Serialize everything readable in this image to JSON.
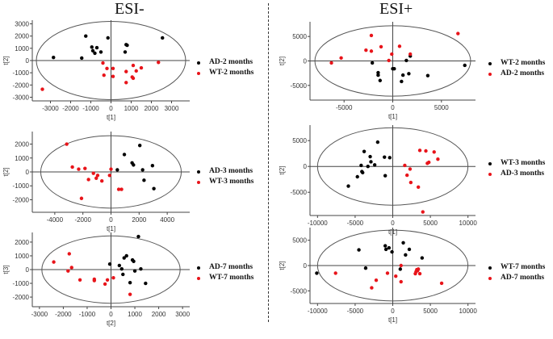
{
  "titles": {
    "negative": "ESI-",
    "positive": "ESI+"
  },
  "colors": {
    "black_group": "#000000",
    "red_group": "#e8141a",
    "axis": "#444444",
    "ellipse": "#555555"
  },
  "chart_data": [
    {
      "id": "esi-neg-2m",
      "type": "scatter",
      "section": "ESI-",
      "xlabel": "t[1]",
      "ylabel": "t[2]",
      "xlim": [
        -3900,
        3900
      ],
      "ylim": [
        -3300,
        3300
      ],
      "xticks": [
        -3000,
        -2000,
        -1000,
        0,
        1000,
        2000,
        3000
      ],
      "yticks": [
        -3000,
        -2000,
        -1000,
        0,
        1000,
        2000,
        3000
      ],
      "ellipse": {
        "rx": 3700,
        "ry": 3200
      },
      "legend": [
        {
          "label": "AD-2 months",
          "color": "#000000"
        },
        {
          "label": "WT-2 months",
          "color": "#e8141a"
        }
      ],
      "series": [
        {
          "name": "AD-2 months",
          "color": "#000000",
          "points": [
            [
              -2850,
              250
            ],
            [
              -1450,
              200
            ],
            [
              -1250,
              2000
            ],
            [
              -950,
              1100
            ],
            [
              -900,
              800
            ],
            [
              -800,
              600
            ],
            [
              -700,
              1050
            ],
            [
              -500,
              700
            ],
            [
              -150,
              1850
            ],
            [
              700,
              700
            ],
            [
              750,
              1300
            ],
            [
              800,
              1250
            ],
            [
              2550,
              1850
            ]
          ]
        },
        {
          "name": "WT-2 months",
          "color": "#e8141a",
          "points": [
            [
              -3400,
              -2350
            ],
            [
              -400,
              -200
            ],
            [
              -350,
              -1200
            ],
            [
              -200,
              -650
            ],
            [
              100,
              -650
            ],
            [
              100,
              -1300
            ],
            [
              750,
              -900
            ],
            [
              750,
              -1800
            ],
            [
              1050,
              -1350
            ],
            [
              1100,
              -1450
            ],
            [
              1100,
              -400
            ],
            [
              1250,
              -850
            ],
            [
              1500,
              -600
            ],
            [
              2350,
              -150
            ]
          ]
        }
      ]
    },
    {
      "id": "esi-neg-3m",
      "type": "scatter",
      "section": "ESI-",
      "xlabel": "t[1]",
      "ylabel": "t[2]",
      "xlim": [
        -5600,
        5600
      ],
      "ylim": [
        -2900,
        2900
      ],
      "xticks": [
        -4000,
        -2000,
        0,
        2000,
        4000
      ],
      "yticks": [
        -2000,
        -1000,
        0,
        1000,
        2000
      ],
      "ellipse": {
        "rx": 5000,
        "ry": 2600
      },
      "legend": [
        {
          "label": "AD-3 months",
          "color": "#000000"
        },
        {
          "label": "WT-3 months",
          "color": "#e8141a"
        }
      ],
      "series": [
        {
          "name": "AD-3 months",
          "color": "#000000",
          "points": [
            [
              450,
              150
            ],
            [
              950,
              1250
            ],
            [
              1500,
              650
            ],
            [
              1600,
              500
            ],
            [
              2050,
              1900
            ],
            [
              2250,
              150
            ],
            [
              2350,
              -600
            ],
            [
              2950,
              450
            ],
            [
              3050,
              -1200
            ]
          ]
        },
        {
          "name": "WT-3 months",
          "color": "#e8141a",
          "points": [
            [
              -3150,
              2000
            ],
            [
              -2750,
              350
            ],
            [
              -2300,
              200
            ],
            [
              -2100,
              -1900
            ],
            [
              -1850,
              250
            ],
            [
              -1600,
              -550
            ],
            [
              -1250,
              -100
            ],
            [
              -1050,
              -450
            ],
            [
              -950,
              -250
            ],
            [
              -650,
              -650
            ],
            [
              -100,
              -250
            ],
            [
              0,
              200
            ],
            [
              550,
              -1250
            ],
            [
              750,
              -1250
            ]
          ]
        }
      ]
    },
    {
      "id": "esi-neg-7m",
      "type": "scatter",
      "section": "ESI-",
      "xlabel": "t[2]",
      "ylabel": "t[3]",
      "xlim": [
        -3300,
        3300
      ],
      "ylim": [
        -2700,
        2700
      ],
      "xticks": [
        -3000,
        -2000,
        -1000,
        0,
        1000,
        2000,
        3000
      ],
      "yticks": [
        -2000,
        -1000,
        0,
        1000,
        2000
      ],
      "ellipse": {
        "rx": 2900,
        "ry": 2450
      },
      "legend": [
        {
          "label": "AD-7 months",
          "color": "#000000"
        },
        {
          "label": "WT-7 months",
          "color": "#e8141a"
        }
      ],
      "series": [
        {
          "name": "AD-7 months",
          "color": "#000000",
          "points": [
            [
              -50,
              400
            ],
            [
              350,
              300
            ],
            [
              450,
              50
            ],
            [
              500,
              -350
            ],
            [
              550,
              850
            ],
            [
              650,
              1000
            ],
            [
              800,
              -950
            ],
            [
              900,
              700
            ],
            [
              950,
              600
            ],
            [
              1000,
              -100
            ],
            [
              1150,
              2400
            ],
            [
              1250,
              50
            ],
            [
              1450,
              -1000
            ]
          ]
        },
        {
          "name": "WT-7 months",
          "color": "#e8141a",
          "points": [
            [
              -2400,
              550
            ],
            [
              -1750,
              1150
            ],
            [
              -1800,
              -100
            ],
            [
              -1650,
              150
            ],
            [
              -1300,
              -750
            ],
            [
              -700,
              -700
            ],
            [
              -700,
              -800
            ],
            [
              -250,
              -1050
            ],
            [
              -150,
              -750
            ],
            [
              100,
              -600
            ],
            [
              800,
              -1800
            ]
          ]
        }
      ]
    },
    {
      "id": "esi-pos-2m",
      "type": "scatter",
      "section": "ESI+",
      "xlabel": "t[1]",
      "ylabel": "t[2]",
      "xlim": [
        -8500,
        8500
      ],
      "ylim": [
        -8000,
        8000
      ],
      "xticks": [
        -5000,
        0,
        5000
      ],
      "yticks": [
        -5000,
        0,
        5000
      ],
      "ellipse": {
        "rx": 8000,
        "ry": 7200
      },
      "legend": [
        {
          "label": "WT-2 months",
          "color": "#000000"
        },
        {
          "label": "AD-2 months",
          "color": "#e8141a"
        }
      ],
      "series": [
        {
          "name": "WT-2 months",
          "color": "#000000",
          "points": [
            [
              -2100,
              -400
            ],
            [
              -1500,
              -2400
            ],
            [
              -1500,
              -2900
            ],
            [
              -1300,
              -4000
            ],
            [
              0,
              -1600
            ],
            [
              150,
              -1600
            ],
            [
              900,
              -4200
            ],
            [
              1050,
              -2900
            ],
            [
              1400,
              100
            ],
            [
              1650,
              -2600
            ],
            [
              1800,
              1000
            ],
            [
              3600,
              -3000
            ],
            [
              7400,
              -900
            ]
          ]
        },
        {
          "name": "AD-2 months",
          "color": "#e8141a",
          "points": [
            [
              -6300,
              -400
            ],
            [
              -5300,
              600
            ],
            [
              -2750,
              2200
            ],
            [
              -2200,
              2000
            ],
            [
              -2200,
              5200
            ],
            [
              -1200,
              2900
            ],
            [
              -400,
              100
            ],
            [
              -100,
              1400
            ],
            [
              700,
              3000
            ],
            [
              1800,
              1400
            ],
            [
              6700,
              5600
            ]
          ]
        }
      ]
    },
    {
      "id": "esi-pos-3m",
      "type": "scatter",
      "section": "ESI+",
      "xlabel": "t[1]",
      "ylabel": "t[2]",
      "xlim": [
        -11000,
        11000
      ],
      "ylim": [
        -9500,
        8000
      ],
      "xticks": [
        -10000,
        -5000,
        0,
        5000,
        10000
      ],
      "yticks": [
        -5000,
        0,
        5000
      ],
      "ellipse": {
        "rx": 10000,
        "ry": 7500
      },
      "legend": [
        {
          "label": "WT-3 months",
          "color": "#000000"
        },
        {
          "label": "AD-3 months",
          "color": "#e8141a"
        }
      ],
      "series": [
        {
          "name": "WT-3 months",
          "color": "#000000",
          "points": [
            [
              -5900,
              -3800
            ],
            [
              -4700,
              -2000
            ],
            [
              -4200,
              200
            ],
            [
              -4100,
              -1000
            ],
            [
              -4000,
              -1200
            ],
            [
              -3800,
              2900
            ],
            [
              -3300,
              0
            ],
            [
              -3000,
              1900
            ],
            [
              -2900,
              900
            ],
            [
              -2400,
              300
            ],
            [
              -2000,
              4700
            ],
            [
              -1100,
              1800
            ],
            [
              -1000,
              -1800
            ],
            [
              -400,
              1700
            ]
          ]
        },
        {
          "name": "AD-3 months",
          "color": "#e8141a",
          "points": [
            [
              1600,
              200
            ],
            [
              1900,
              -1700
            ],
            [
              2300,
              -500
            ],
            [
              2400,
              -3100
            ],
            [
              3400,
              -4000
            ],
            [
              3600,
              3100
            ],
            [
              4000,
              -8800
            ],
            [
              4400,
              3000
            ],
            [
              4600,
              600
            ],
            [
              4800,
              800
            ],
            [
              5500,
              2800
            ],
            [
              6000,
              1400
            ]
          ]
        }
      ]
    },
    {
      "id": "esi-pos-7m",
      "type": "scatter",
      "section": "ESI+",
      "xlabel": "t[1]",
      "ylabel": "t[2]",
      "xlim": [
        -11000,
        11000
      ],
      "ylim": [
        -7500,
        7500
      ],
      "xticks": [
        -10000,
        -5000,
        0,
        5000,
        10000
      ],
      "yticks": [
        -5000,
        0,
        5000
      ],
      "ellipse": {
        "rx": 10000,
        "ry": 7000
      },
      "legend": [
        {
          "label": "WT-7 months",
          "color": "#000000"
        },
        {
          "label": "AD-7 months",
          "color": "#e8141a"
        }
      ],
      "series": [
        {
          "name": "WT-7 months",
          "color": "#000000",
          "points": [
            [
              -10100,
              -1500
            ],
            [
              -4500,
              3100
            ],
            [
              -3600,
              -500
            ],
            [
              -1000,
              3900
            ],
            [
              -900,
              3200
            ],
            [
              -500,
              3500
            ],
            [
              -100,
              2700
            ],
            [
              1000,
              -700
            ],
            [
              1400,
              4500
            ],
            [
              1700,
              2100
            ],
            [
              2200,
              3200
            ],
            [
              3900,
              1500
            ]
          ]
        },
        {
          "name": "AD-7 months",
          "color": "#e8141a",
          "points": [
            [
              -7600,
              -1500
            ],
            [
              -2800,
              -4400
            ],
            [
              -2200,
              -2900
            ],
            [
              -700,
              -1500
            ],
            [
              400,
              -2100
            ],
            [
              1100,
              0
            ],
            [
              1100,
              -3200
            ],
            [
              3000,
              -1600
            ],
            [
              3100,
              -1200
            ],
            [
              3200,
              -800
            ],
            [
              3300,
              -1000
            ],
            [
              3400,
              -700
            ],
            [
              3600,
              -1600
            ],
            [
              6500,
              -3500
            ]
          ]
        }
      ]
    }
  ]
}
